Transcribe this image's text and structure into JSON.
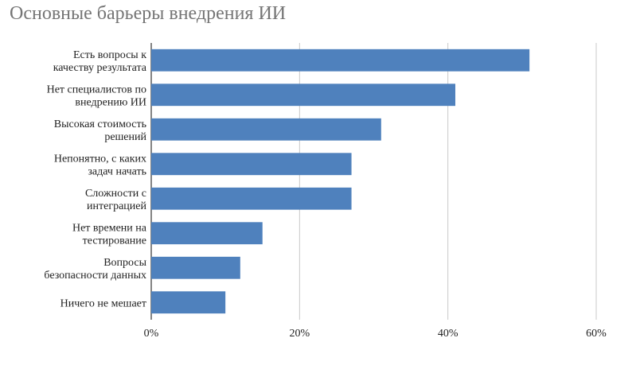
{
  "chart_data": {
    "type": "bar",
    "orientation": "horizontal",
    "title": "Основные барьеры внедрения ИИ",
    "categories": [
      [
        "Есть вопросы к",
        "качеству результата"
      ],
      [
        "Нет специалистов по",
        "внедрению ИИ"
      ],
      [
        "Высокая стоимость",
        "решений"
      ],
      [
        "Непонятно, с каких",
        "задач начать"
      ],
      [
        "Сложности с",
        "интеграцией"
      ],
      [
        "Нет времени на",
        "тестирование"
      ],
      [
        "Вопросы",
        "безопасности данных"
      ],
      [
        "Ничего не мешает"
      ]
    ],
    "values": [
      51,
      41,
      31,
      27,
      27,
      15,
      12,
      10
    ],
    "xlim": [
      0,
      60
    ],
    "xticks": [
      0,
      20,
      40,
      60
    ],
    "tick_labels": [
      "0%",
      "20%",
      "40%",
      "60%"
    ],
    "xlabel": "",
    "ylabel": "",
    "grid": "vertical",
    "bar_color": "#4F81BD",
    "grid_color": "#C8C8C8",
    "legend": "none"
  }
}
